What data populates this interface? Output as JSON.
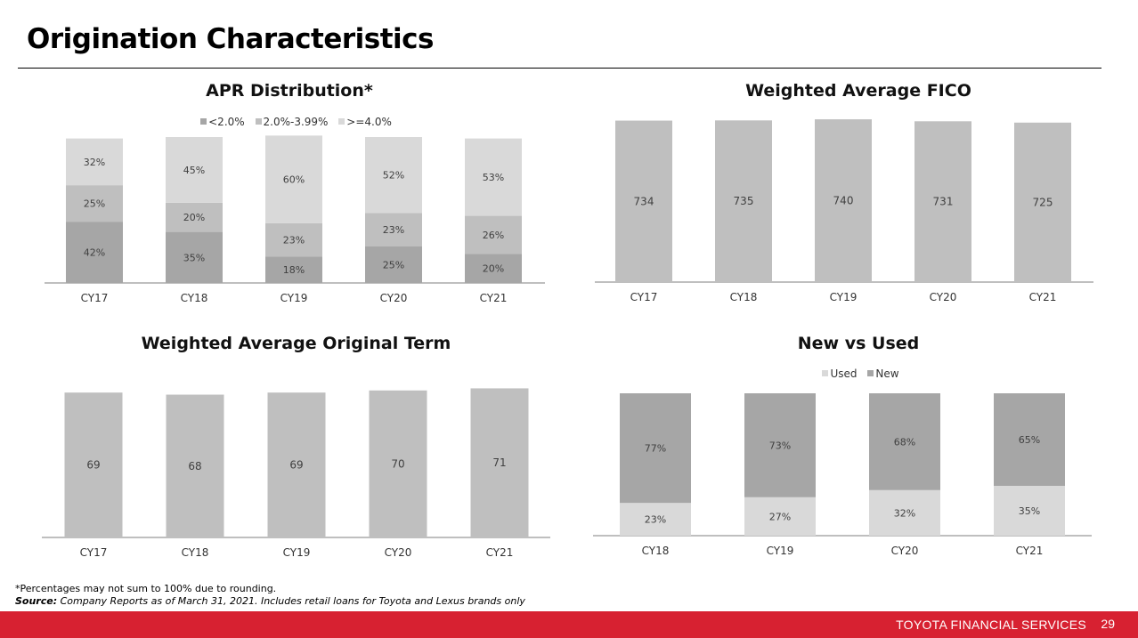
{
  "page": {
    "title": "Origination Characteristics",
    "footnote": "*Percentages may not sum to 100% due to rounding.",
    "source_label": "Source:",
    "source_text": " Company Reports as of March 31, 2021. Includes retail loans for Toyota and Lexus brands only",
    "footer_brand": "TOYOTA FINANCIAL SERVICES",
    "page_number": "29"
  },
  "colors": {
    "dark_gray": "#a6a6a6",
    "mid_gray": "#bfbfbf",
    "light_gray": "#d9d9d9",
    "bar_gray": "#bfbfbf",
    "footer_red": "#d72131"
  },
  "chart_data": [
    {
      "id": "apr",
      "type": "bar",
      "stacked": true,
      "title": "APR Distribution*",
      "categories": [
        "CY17",
        "CY18",
        "CY19",
        "CY20",
        "CY21"
      ],
      "series": [
        {
          "name": "<2.0%",
          "values": [
            42,
            35,
            18,
            25,
            20
          ],
          "color": "#a6a6a6",
          "labels": [
            "42%",
            "35%",
            "18%",
            "25%",
            "20%"
          ]
        },
        {
          "name": "2.0%-3.99%",
          "values": [
            25,
            20,
            23,
            23,
            26
          ],
          "color": "#bfbfbf",
          "labels": [
            "25%",
            "20%",
            "23%",
            "23%",
            "26%"
          ]
        },
        {
          "name": ">=4.0%",
          "values": [
            32,
            45,
            60,
            52,
            53
          ],
          "color": "#d9d9d9",
          "labels": [
            "32%",
            "45%",
            "60%",
            "52%",
            "53%"
          ]
        }
      ],
      "legend": "top"
    },
    {
      "id": "fico",
      "type": "bar",
      "title": "Weighted Average FICO",
      "categories": [
        "CY17",
        "CY18",
        "CY19",
        "CY20",
        "CY21"
      ],
      "values": [
        734,
        735,
        740,
        731,
        725
      ],
      "labels": [
        "734",
        "735",
        "740",
        "731",
        "725"
      ],
      "color": "#bfbfbf"
    },
    {
      "id": "term",
      "type": "bar",
      "title": "Weighted Average Original Term",
      "categories": [
        "CY17",
        "CY18",
        "CY19",
        "CY20",
        "CY21"
      ],
      "values": [
        69,
        68,
        69,
        70,
        71
      ],
      "labels": [
        "69",
        "68",
        "69",
        "70",
        "71"
      ],
      "color": "#bfbfbf"
    },
    {
      "id": "newused",
      "type": "bar",
      "stacked": true,
      "title": "New vs Used",
      "categories": [
        "CY18",
        "CY19",
        "CY20",
        "CY21"
      ],
      "series": [
        {
          "name": "Used",
          "values": [
            23,
            27,
            32,
            35
          ],
          "color": "#d9d9d9",
          "labels": [
            "23%",
            "27%",
            "32%",
            "35%"
          ]
        },
        {
          "name": "New",
          "values": [
            77,
            73,
            68,
            65
          ],
          "color": "#a6a6a6",
          "labels": [
            "77%",
            "73%",
            "68%",
            "65%"
          ]
        }
      ],
      "legend": "top"
    }
  ]
}
